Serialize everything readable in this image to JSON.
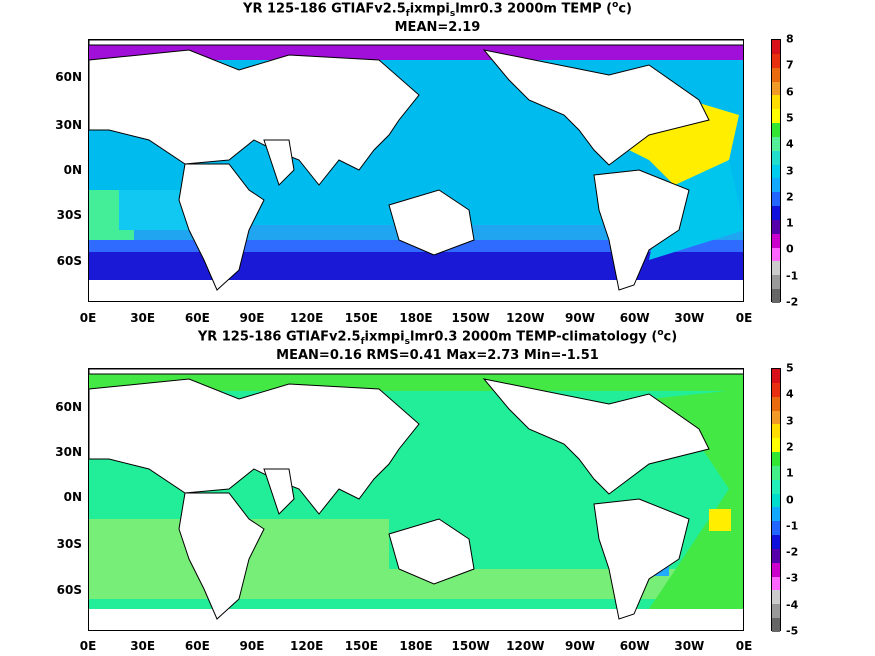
{
  "panels": [
    {
      "title_line1_prefix": "YR 125-186 GTIAFv2.5",
      "title_sub1": "f",
      "title_mid": "ixmpi",
      "title_sub2": "s",
      "title_line1_suffix": "lmr0.3 2000m TEMP (",
      "title_sup": "o",
      "title_unit": "c)",
      "title_line2": "MEAN=2.19",
      "colorbar_labels": [
        "8",
        "7",
        "6",
        "5",
        "4",
        "3",
        "2",
        "1",
        "0",
        "-1",
        "-2"
      ],
      "colorbar_colors": [
        "#d8101a",
        "#e83010",
        "#ea6a10",
        "#f29a28",
        "#ffdd00",
        "#ffff00",
        "#33e633",
        "#55ee99",
        "#22ddcc",
        "#00ccee",
        "#11aaff",
        "#2266ff",
        "#1010dd",
        "#5500aa",
        "#cc00cc",
        "#ff66ff",
        "#cccccc",
        "#999999",
        "#666666"
      ],
      "fill_colors": {
        "base": "#00bbee",
        "south1": "#20a6f0",
        "south2": "#2f6bff",
        "south3": "#1a1ad6",
        "indian": "#11c8f2",
        "atlantic_n": "#ffee00",
        "atlantic_s": "#00c6ee",
        "arctic": "#a010d8",
        "mid": "#44ee99"
      }
    },
    {
      "title_line1_prefix": "YR 125-186 GTIAFv2.5",
      "title_sub1": "f",
      "title_mid": "ixmpi",
      "title_sub2": "s",
      "title_line1_suffix": "lmr0.3 2000m TEMP-climatology (",
      "title_sup": "o",
      "title_unit": "c)",
      "title_line2": "MEAN=0.16   RMS=0.41   Max=2.73   Min=-1.51",
      "colorbar_labels": [
        "5",
        "4",
        "3",
        "2",
        "1",
        "0",
        "-1",
        "-2",
        "-3",
        "-4",
        "-5"
      ],
      "colorbar_colors": [
        "#d8101a",
        "#e83010",
        "#ea6a10",
        "#f29a28",
        "#ffdd00",
        "#ffff00",
        "#33e633",
        "#44ee88",
        "#22eebb",
        "#00ddcc",
        "#11aaff",
        "#2266ff",
        "#1010dd",
        "#5500aa",
        "#cc00cc",
        "#ff66ff",
        "#cccccc",
        "#999999",
        "#666666"
      ],
      "fill_colors": {
        "base": "#22ee99",
        "light": "#77ee77",
        "green": "#44e844",
        "yellow": "#ffee00",
        "blue": "#22aaff"
      }
    }
  ],
  "axes": {
    "y_labels": [
      "60N",
      "30N",
      "0N",
      "30S",
      "60S"
    ],
    "x_labels": [
      "0E",
      "30E",
      "60E",
      "90E",
      "120E",
      "150E",
      "180E",
      "150W",
      "120W",
      "90W",
      "60W",
      "30W",
      "0E"
    ]
  }
}
